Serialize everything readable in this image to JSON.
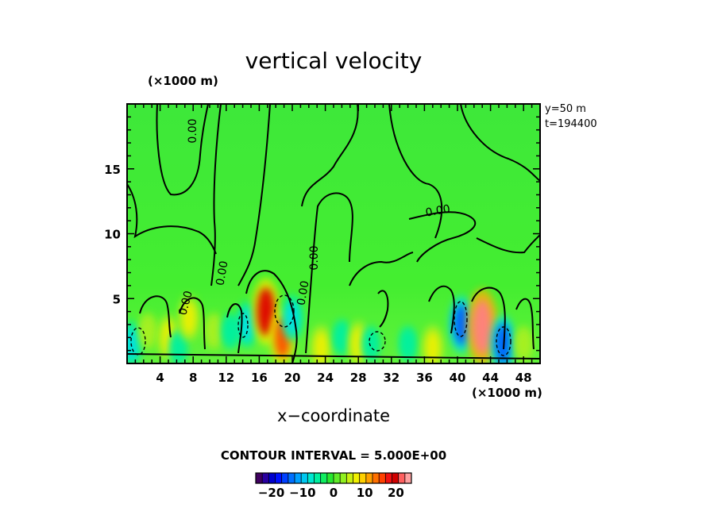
{
  "chart_data": {
    "type": "heatmap",
    "title": "vertical velocity",
    "xlabel": "x−coordinate",
    "x_unit": "(×1000 m)",
    "y_unit": "(×1000 m)",
    "xlim": [
      0,
      50
    ],
    "ylim": [
      0,
      20
    ],
    "x_ticks": [
      "4",
      "8",
      "12",
      "16",
      "20",
      "24",
      "28",
      "32",
      "36",
      "40",
      "44",
      "48"
    ],
    "y_ticks": [
      "5",
      "10",
      "15"
    ],
    "annotations": [
      "y=50  m",
      "t=194400"
    ],
    "contour_labels": [
      "0.00",
      "0.00",
      "0.00",
      "0.00",
      "0.00",
      "0.00"
    ],
    "contour_interval": "CONTOUR INTERVAL = 5.000E+00",
    "colorbar": {
      "ticks": [
        "−20",
        "−10",
        "0",
        "10",
        "20"
      ],
      "tick_values": [
        -20,
        -10,
        0,
        10,
        20
      ],
      "range": [
        -25,
        25
      ]
    },
    "cells": [
      {
        "x": 0.5,
        "y": 1.5,
        "w": -10
      },
      {
        "x": 2.5,
        "y": 2.5,
        "w": 5
      },
      {
        "x": 5.0,
        "y": 2.0,
        "w": 10
      },
      {
        "x": 6.2,
        "y": 1.2,
        "w": -5
      },
      {
        "x": 7.5,
        "y": 3.5,
        "w": 10
      },
      {
        "x": 10.5,
        "y": 2.5,
        "w": 5
      },
      {
        "x": 12.5,
        "y": 2.5,
        "w": -5
      },
      {
        "x": 14.5,
        "y": 3.0,
        "w": -10
      },
      {
        "x": 16.8,
        "y": 4.0,
        "w": 20
      },
      {
        "x": 18.8,
        "y": 2.0,
        "w": 15
      },
      {
        "x": 20.0,
        "y": 3.5,
        "w": -10
      },
      {
        "x": 23.5,
        "y": 1.2,
        "w": 10
      },
      {
        "x": 26.0,
        "y": 2.0,
        "w": -5
      },
      {
        "x": 28.0,
        "y": 1.5,
        "w": 10
      },
      {
        "x": 29.5,
        "y": 1.5,
        "w": -5
      },
      {
        "x": 34.0,
        "y": 1.5,
        "w": -5
      },
      {
        "x": 37.0,
        "y": 1.2,
        "w": 10
      },
      {
        "x": 40.5,
        "y": 3.0,
        "w": -15
      },
      {
        "x": 43.0,
        "y": 2.8,
        "w": 25
      },
      {
        "x": 45.5,
        "y": 1.5,
        "w": -15
      },
      {
        "x": 48.0,
        "y": 1.5,
        "w": 5
      }
    ]
  }
}
